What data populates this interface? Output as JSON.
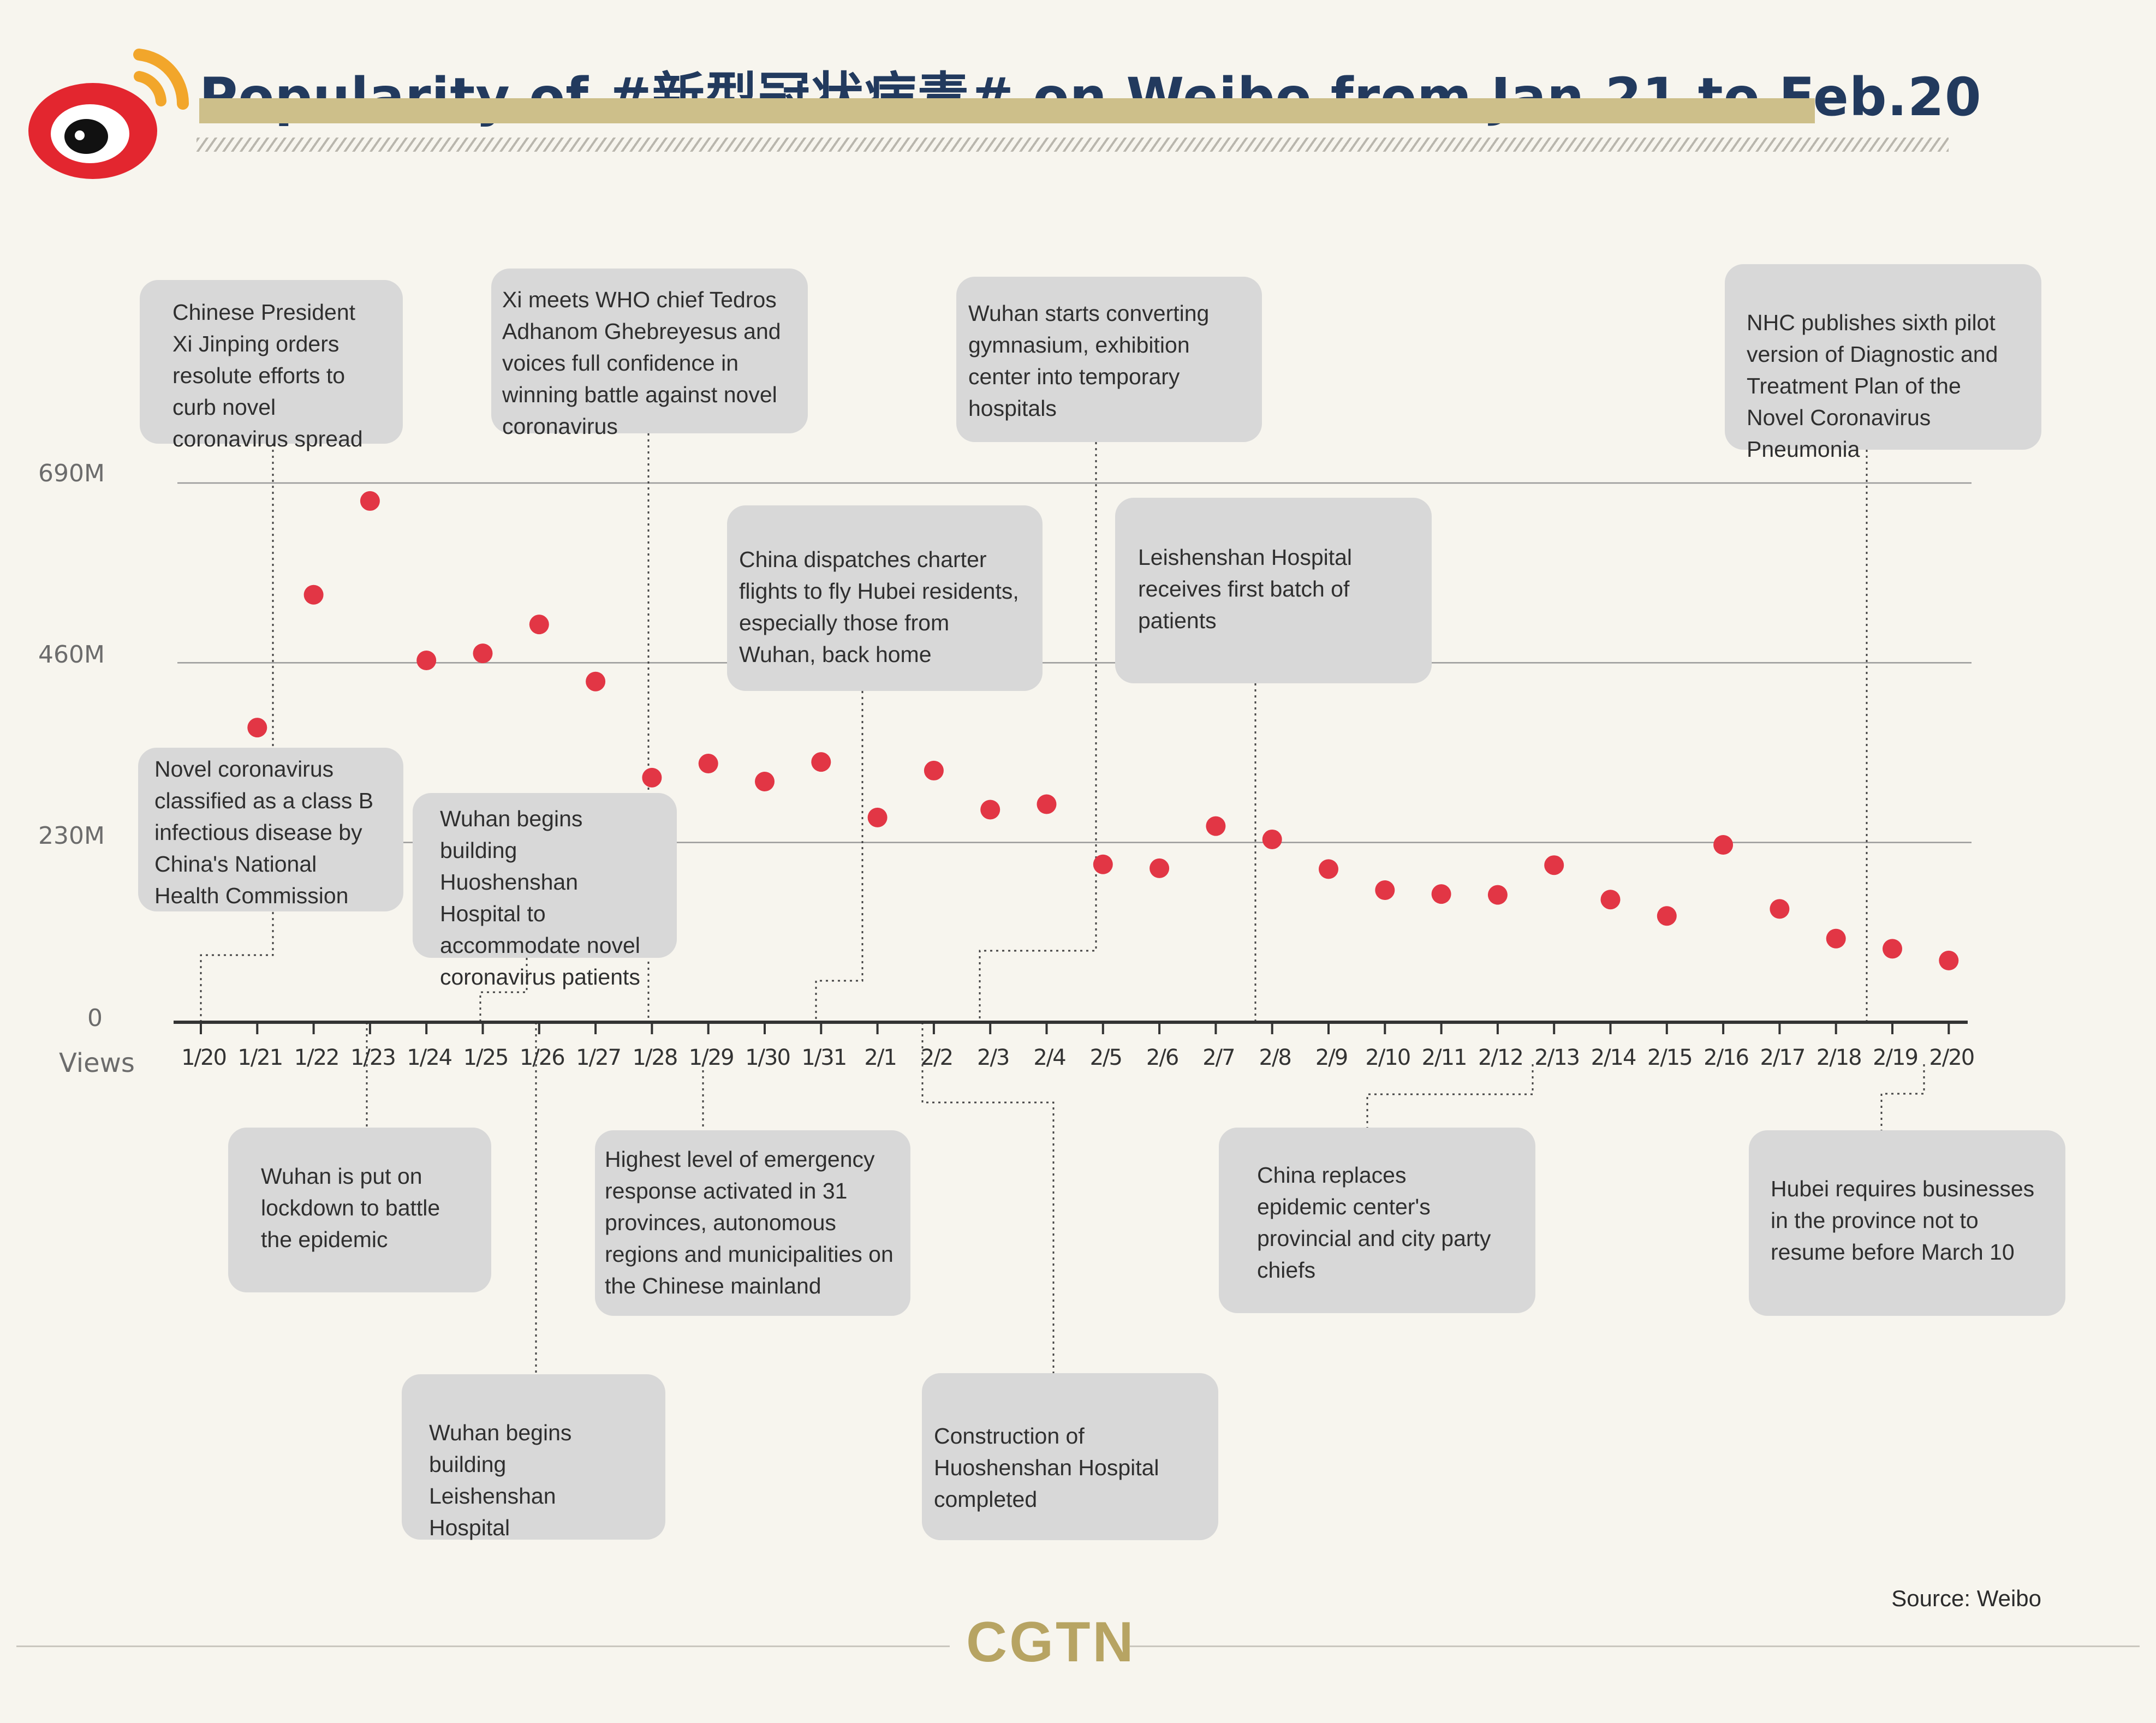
{
  "header": {
    "title": "Popularity of #新型冠状病毒# on Weibo from Jan.21 to Feb.20",
    "logo_icon": "weibo-logo-icon"
  },
  "colors": {
    "background": "#f7f5ee",
    "dot": "#e23645",
    "title": "#223a5e",
    "title_bar": "#cdbf8a",
    "note_box": "#d8d8d8",
    "brand": "#b7a463"
  },
  "chart_data": {
    "type": "scatter",
    "title": "Popularity of #新型冠状病毒# on Weibo from Jan.21 to Feb.20",
    "ylabel": "Views",
    "yticks": [
      "0",
      "230M",
      "460M",
      "690M"
    ],
    "ytick_values": [
      0,
      230,
      460,
      690
    ],
    "ylim": [
      0,
      690
    ],
    "y_unit": "M",
    "grid": true,
    "x": [
      "1/20",
      "1/21",
      "1/22",
      "1/23",
      "1/24",
      "1/25",
      "1/26",
      "1/27",
      "1/28",
      "1/29",
      "1/30",
      "1/31",
      "2/1",
      "2/2",
      "2/3",
      "2/4",
      "2/5",
      "2/6",
      "2/7",
      "2/8",
      "2/9",
      "2/10",
      "2/11",
      "2/12",
      "2/13",
      "2/14",
      "2/15",
      "2/16",
      "2/17",
      "2/18",
      "2/19",
      "2/20"
    ],
    "points": [
      {
        "x": "1/21",
        "y": 377
      },
      {
        "x": "1/22",
        "y": 547
      },
      {
        "x": "1/23",
        "y": 667
      },
      {
        "x": "1/24",
        "y": 463
      },
      {
        "x": "1/25",
        "y": 472
      },
      {
        "x": "1/26",
        "y": 509
      },
      {
        "x": "1/27",
        "y": 436
      },
      {
        "x": "1/28",
        "y": 313
      },
      {
        "x": "1/29",
        "y": 331
      },
      {
        "x": "1/30",
        "y": 308
      },
      {
        "x": "1/31",
        "y": 333
      },
      {
        "x": "2/1",
        "y": 262
      },
      {
        "x": "2/2",
        "y": 322
      },
      {
        "x": "2/3",
        "y": 272
      },
      {
        "x": "2/4",
        "y": 279
      },
      {
        "x": "2/5",
        "y": 202
      },
      {
        "x": "2/6",
        "y": 197
      },
      {
        "x": "2/7",
        "y": 251
      },
      {
        "x": "2/8",
        "y": 234
      },
      {
        "x": "2/9",
        "y": 196
      },
      {
        "x": "2/10",
        "y": 169
      },
      {
        "x": "2/11",
        "y": 164
      },
      {
        "x": "2/12",
        "y": 163
      },
      {
        "x": "2/13",
        "y": 201
      },
      {
        "x": "2/14",
        "y": 157
      },
      {
        "x": "2/15",
        "y": 136
      },
      {
        "x": "2/16",
        "y": 227
      },
      {
        "x": "2/17",
        "y": 145
      },
      {
        "x": "2/18",
        "y": 107
      },
      {
        "x": "2/19",
        "y": 94
      },
      {
        "x": "2/20",
        "y": 79
      }
    ],
    "source": "Source: Weibo"
  },
  "annotations": [
    {
      "date": "1/21",
      "text": "Chinese President Xi Jinping orders resolute efforts to curb novel coronavirus spread"
    },
    {
      "date": "1/20",
      "text": "Novel coronavirus classified as a class B infectious disease by China's National Health Commission"
    },
    {
      "date": "1/28",
      "text": "Xi meets WHO chief Tedros Adhanom Ghebreyesus and voices full confidence in winning battle against novel coronavirus"
    },
    {
      "date": "1/25",
      "text": "Wuhan begins building Huoshenshan Hospital to accommodate novel coronavirus patients"
    },
    {
      "date": "1/31",
      "text": "China dispatches charter flights to fly Hubei residents, especially those from Wuhan, back home"
    },
    {
      "date": "2/3",
      "text": "Wuhan starts converting gymnasium, exhibition center into temporary hospitals"
    },
    {
      "date": "2/8",
      "text": "Leishenshan Hospital receives first batch of patients"
    },
    {
      "date": "2/19",
      "text": "NHC publishes sixth pilot version of Diagnostic and Treatment Plan of the Novel Coronavirus Pneumonia"
    },
    {
      "date": "1/23",
      "text": "Wuhan is put on lockdown to battle the epidemic"
    },
    {
      "date": "1/29",
      "text": "Highest level of emergency response activated in 31 provinces, autonomous regions and municipalities on the Chinese mainland"
    },
    {
      "date": "1/26",
      "text": "Wuhan begins building Leishenshan Hospital"
    },
    {
      "date": "2/2",
      "text": "Construction of Huoshenshan Hospital completed"
    },
    {
      "date": "2/13",
      "text": "China replaces epidemic center's provincial and city party chiefs"
    },
    {
      "date": "2/20",
      "text": "Hubei requires businesses in the province not to resume before March 10"
    }
  ],
  "footer": {
    "brand": "CGTN"
  }
}
